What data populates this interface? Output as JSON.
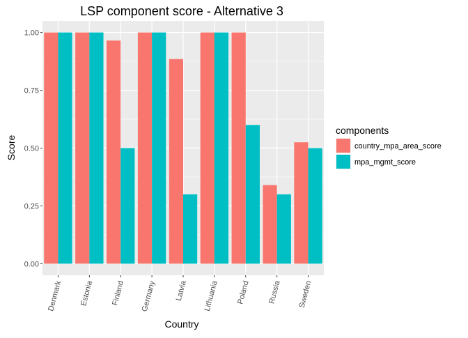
{
  "chart_data": {
    "type": "bar",
    "title": "LSP component score - Alternative 3",
    "xlabel": "Country",
    "ylabel": "Score",
    "categories": [
      "Denmark",
      "Estonia",
      "Finland",
      "Germany",
      "Latvia",
      "Lithuania",
      "Poland",
      "Russia",
      "Sweden"
    ],
    "series": [
      {
        "name": "country_mpa_area_score",
        "color": "#F8766D",
        "values": [
          1.0,
          1.0,
          0.965,
          1.0,
          0.885,
          1.0,
          1.0,
          0.34,
          0.525
        ]
      },
      {
        "name": "mpa_mgmt_score",
        "color": "#00BFC4",
        "values": [
          1.0,
          1.0,
          0.5,
          1.0,
          0.3,
          1.0,
          0.6,
          0.3,
          0.5
        ]
      }
    ],
    "ylim": [
      -0.05,
      1.05
    ],
    "yticks": [
      0.0,
      0.25,
      0.5,
      0.75,
      1.0
    ],
    "ytick_labels": [
      "0.00",
      "0.25",
      "0.50",
      "0.75",
      "1.00"
    ],
    "legend_title": "components",
    "legend_position": "right",
    "grid": true,
    "panel_background": "#EBEBEB",
    "grid_color": "#FFFFFF"
  }
}
